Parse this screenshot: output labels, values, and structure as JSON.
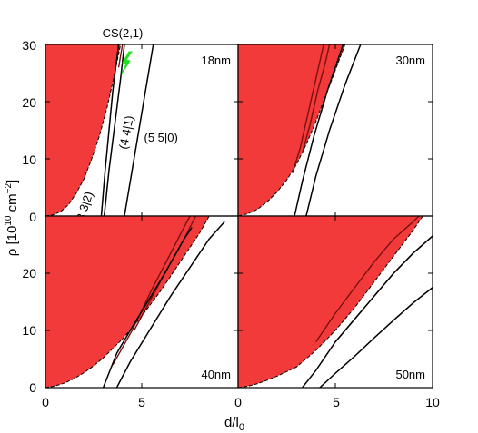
{
  "chart_data": {
    "type": "area",
    "xlabel": "d/l",
    "xlabel_sub": "0",
    "ylabel": "ρ [10",
    "ylabel_sup": "10",
    "ylabel_unit": " cm",
    "ylabel_unit_sup": "−2",
    "xlim": [
      0,
      10
    ],
    "ylim": [
      0,
      30
    ],
    "xticks": [
      "0",
      "5",
      "10"
    ],
    "yticks": [
      "0",
      "10",
      "20",
      "30"
    ],
    "fill_color": "#f23a3a",
    "line_color": "#000000",
    "dark_line_color": "#7a1010",
    "panels": [
      {
        "id": "p18",
        "label": "18nm",
        "boundary": [
          [
            0,
            0
          ],
          [
            0.4,
            0.2
          ],
          [
            0.8,
            0.8
          ],
          [
            1.2,
            2
          ],
          [
            1.6,
            4
          ],
          [
            2,
            6.5
          ],
          [
            2.4,
            10
          ],
          [
            2.8,
            14
          ],
          [
            3.2,
            19
          ],
          [
            3.6,
            25
          ],
          [
            3.9,
            30
          ]
        ],
        "red_lines": [
          [
            [
              3.8,
              26
            ],
            [
              3.9,
              28
            ],
            [
              4,
              30
            ]
          ]
        ],
        "black_lines": [
          [
            [
              2.9,
              0
            ],
            [
              3.1,
              8
            ],
            [
              3.3,
              15
            ],
            [
              3.5,
              22
            ],
            [
              3.8,
              30
            ]
          ],
          [
            [
              3.05,
              0
            ],
            [
              3.3,
              8
            ],
            [
              3.6,
              16
            ],
            [
              3.9,
              24
            ],
            [
              4.1,
              30
            ]
          ],
          [
            [
              4.1,
              0
            ],
            [
              4.5,
              8
            ],
            [
              4.9,
              16
            ],
            [
              5.3,
              24
            ],
            [
              5.6,
              30
            ]
          ]
        ],
        "annotations": [
          {
            "text": "(3 3|2)",
            "x": 2.2,
            "y": 1.2,
            "rotate": -72
          },
          {
            "text": "(4 4|1)",
            "x": 4.4,
            "y": 14.5,
            "rotate": -79
          },
          {
            "text": "(5 5|0)",
            "x": 6.0,
            "y": 13,
            "rotate": 0
          }
        ],
        "marker": {
          "text": "CS(2,1)",
          "x": 4.15,
          "y": 26.5,
          "color": "#22e022"
        }
      },
      {
        "id": "p30",
        "label": "30nm",
        "boundary": [
          [
            0,
            0
          ],
          [
            0.5,
            0.4
          ],
          [
            1,
            1.2
          ],
          [
            1.5,
            2.5
          ],
          [
            2,
            4.2
          ],
          [
            2.5,
            6.3
          ],
          [
            3,
            9
          ],
          [
            3.5,
            12.5
          ],
          [
            4,
            16.5
          ],
          [
            4.5,
            21
          ],
          [
            5,
            25.5
          ],
          [
            5.5,
            30
          ]
        ],
        "red_lines": [
          [
            [
              2.8,
              7.5
            ],
            [
              3.2,
              12
            ],
            [
              3.6,
              18
            ],
            [
              4,
              24
            ],
            [
              4.4,
              30
            ]
          ],
          [
            [
              3.3,
              11
            ],
            [
              3.7,
              16
            ],
            [
              4.1,
              22
            ],
            [
              4.5,
              27
            ],
            [
              4.7,
              30
            ]
          ]
        ],
        "black_lines": [
          [
            [
              2.9,
              0
            ],
            [
              3.3,
              6
            ],
            [
              3.9,
              14
            ],
            [
              4.6,
              22
            ],
            [
              5.4,
              30
            ]
          ],
          [
            [
              3.5,
              0
            ],
            [
              4,
              7
            ],
            [
              4.7,
              15
            ],
            [
              5.5,
              23
            ],
            [
              6.3,
              30
            ]
          ]
        ],
        "annotations": [],
        "marker": null
      },
      {
        "id": "p40",
        "label": "40nm",
        "boundary": [
          [
            0,
            0
          ],
          [
            0.5,
            0.3
          ],
          [
            1,
            0.8
          ],
          [
            1.5,
            1.6
          ],
          [
            2,
            2.6
          ],
          [
            2.5,
            3.8
          ],
          [
            3,
            5.2
          ],
          [
            4,
            8.5
          ],
          [
            5,
            12.5
          ],
          [
            6,
            17
          ],
          [
            7,
            22
          ],
          [
            8,
            27
          ],
          [
            8.5,
            30
          ]
        ],
        "red_lines": [
          [
            [
              3.5,
              4
            ],
            [
              4.5,
              10
            ],
            [
              5.5,
              17
            ],
            [
              6.5,
              23.5
            ],
            [
              7.5,
              30
            ]
          ],
          [
            [
              4.6,
              10
            ],
            [
              5.4,
              15
            ],
            [
              6.2,
              20
            ],
            [
              7.2,
              26
            ],
            [
              7.8,
              30
            ]
          ]
        ],
        "black_lines": [
          [
            [
              3,
              0
            ],
            [
              3.7,
              6
            ],
            [
              4.4,
              10
            ],
            [
              5.3,
              15
            ],
            [
              6.2,
              20
            ],
            [
              7.2,
              26
            ],
            [
              7.6,
              28
            ]
          ],
          [
            [
              3.7,
              0
            ],
            [
              4.4,
              4.5
            ],
            [
              5.4,
              10
            ],
            [
              6.5,
              16
            ],
            [
              7.5,
              21
            ],
            [
              8.5,
              26
            ],
            [
              9.3,
              29
            ]
          ]
        ],
        "annotations": [],
        "marker": null
      },
      {
        "id": "p50",
        "label": "50nm",
        "boundary": [
          [
            0,
            0
          ],
          [
            0.5,
            0.25
          ],
          [
            1,
            0.7
          ],
          [
            1.5,
            1.3
          ],
          [
            2,
            2
          ],
          [
            2.5,
            2.8
          ],
          [
            3,
            3.6
          ],
          [
            4,
            6.5
          ],
          [
            5,
            10
          ],
          [
            6,
            14
          ],
          [
            7,
            18.5
          ],
          [
            8,
            23
          ],
          [
            9,
            27.5
          ],
          [
            9.5,
            30
          ]
        ],
        "red_lines": [
          [
            [
              4,
              8
            ],
            [
              5,
              13
            ],
            [
              6,
              17.5
            ],
            [
              7,
              22
            ],
            [
              8,
              26
            ],
            [
              9,
              29
            ],
            [
              9.3,
              30
            ]
          ],
          [
            [
              5,
              8
            ],
            [
              6,
              12
            ],
            [
              7,
              16
            ],
            [
              8,
              20
            ],
            [
              9,
              23.5
            ],
            [
              10,
              26.5
            ]
          ]
        ],
        "black_lines": [
          [
            [
              3.3,
              0
            ],
            [
              4,
              3
            ],
            [
              5,
              8
            ],
            [
              6,
              12
            ],
            [
              7,
              16
            ],
            [
              8,
              20
            ],
            [
              9,
              23.5
            ],
            [
              10,
              26.5
            ]
          ],
          [
            [
              4.2,
              0
            ],
            [
              5,
              2.5
            ],
            [
              6,
              5.5
            ],
            [
              7,
              8.7
            ],
            [
              8,
              11.8
            ],
            [
              9,
              14.8
            ],
            [
              10,
              17.5
            ]
          ]
        ],
        "annotations": [],
        "marker": null
      }
    ]
  }
}
